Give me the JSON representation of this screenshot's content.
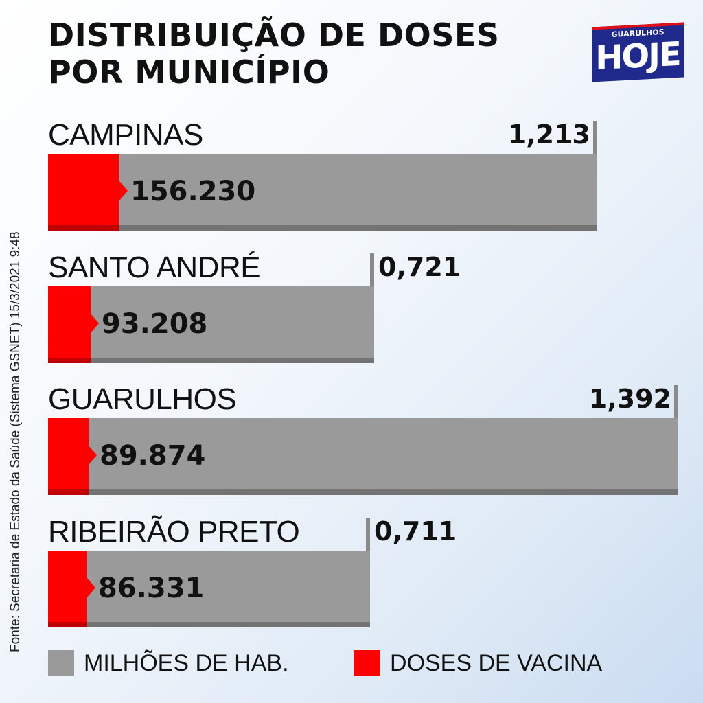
{
  "header": {
    "title_line1": "DISTRIBUIÇÃO DE DOSES",
    "title_line2": "POR MUNICÍPIO"
  },
  "logo": {
    "top": "GUARULHOS",
    "main": "HOJE"
  },
  "source": "Fonte: Secretaria de Estado da Saúde (Sistema GSNET) 15/3/2021 9:48",
  "legend": [
    {
      "label": "MILHÕES DE HAB.",
      "color": "#9a9a9a"
    },
    {
      "label": "DOSES DE VACINA",
      "color": "#ff0000"
    }
  ],
  "chart_data": {
    "type": "bar",
    "title": "DISTRIBUIÇÃO DE DOSES POR MUNICÍPIO",
    "categories": [
      "CAMPINAS",
      "SANTO ANDRÉ",
      "GUARULHOS",
      "RIBEIRÃO PRETO"
    ],
    "series": [
      {
        "name": "MILHÕES DE HAB.",
        "values": [
          1.213,
          0.721,
          1.392,
          0.711
        ],
        "labels": [
          "1,213",
          "0,721",
          "1,392",
          "0,711"
        ],
        "color": "#9a9a9a"
      },
      {
        "name": "DOSES DE VACINA",
        "values": [
          156230,
          93208,
          89874,
          86331
        ],
        "labels": [
          "156.230",
          "93.208",
          "89.874",
          "86.331"
        ],
        "color": "#ff0000"
      }
    ],
    "legend": "bottom"
  }
}
